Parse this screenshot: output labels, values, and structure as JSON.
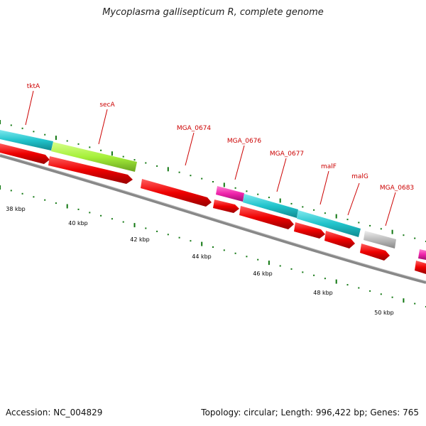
{
  "title": "Mycoplasma gallisepticum R, complete genome",
  "footer": {
    "accession": "Accession: NC_004829",
    "summary": "Topology: circular; Length: 996,422 bp; Genes: 765"
  },
  "colors": {
    "gene_red": "#ee0000",
    "cyan": "#22c4cc",
    "lime": "#a6f03a",
    "magenta": "#ee22aa",
    "grey": "#bbbbbb",
    "backbone": "#888888",
    "tick_green": "#117711",
    "label_red": "#cc0000"
  },
  "gene_labels": [
    "tktA",
    "secA",
    "MGA_0674",
    "MGA_0676",
    "MGA_0677",
    "malF",
    "malG",
    "MGA_0683"
  ],
  "kbp_labels": [
    "38 kbp",
    "40 kbp",
    "42 kbp",
    "44 kbp",
    "46 kbp",
    "48 kbp",
    "50 kbp"
  ]
}
